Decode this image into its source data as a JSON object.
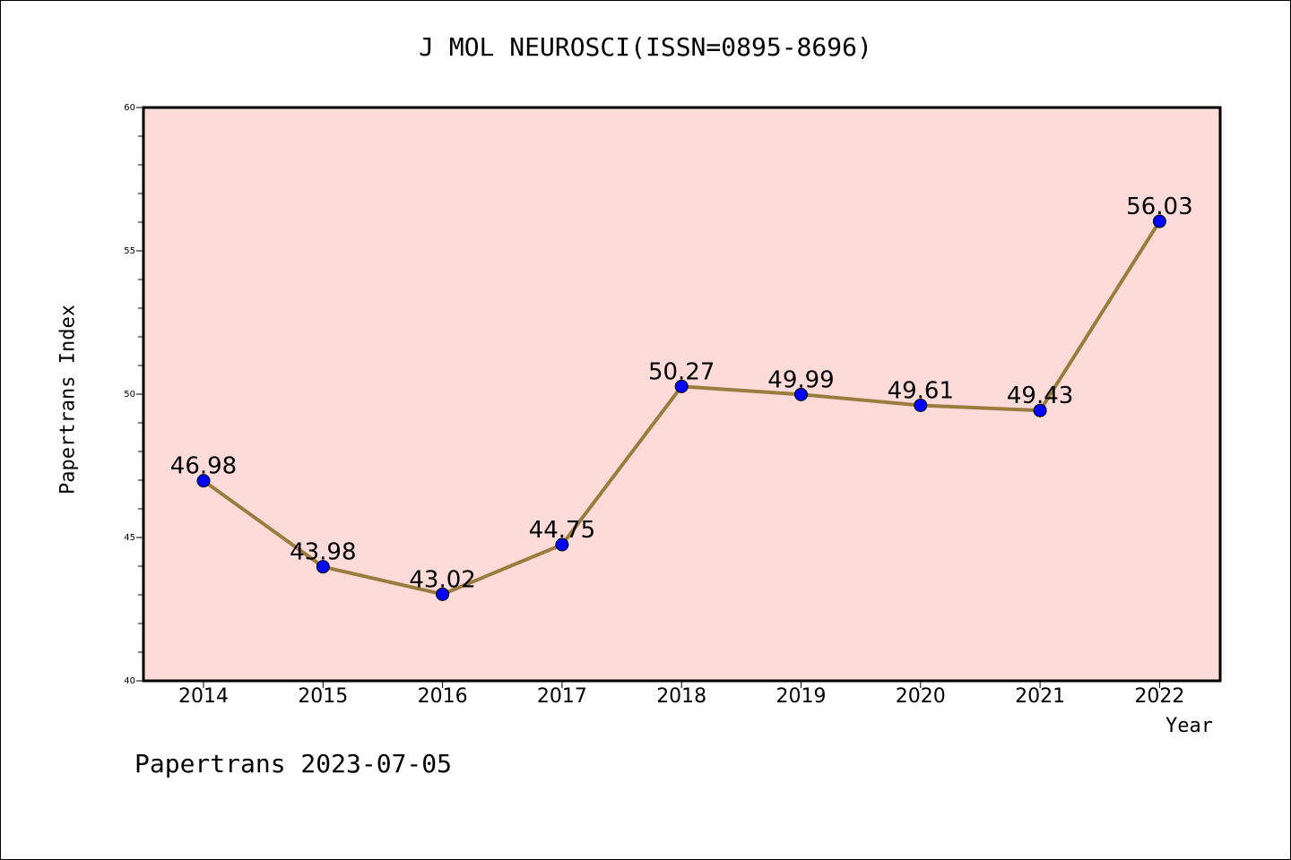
{
  "chart_data": {
    "type": "line",
    "title": "J MOL NEUROSCI(ISSN=0895-8696)",
    "xlabel": "Year",
    "ylabel": "Papertrans Index",
    "categories": [
      "2014",
      "2015",
      "2016",
      "2017",
      "2018",
      "2019",
      "2020",
      "2021",
      "2022"
    ],
    "series": [
      {
        "values": [
          46.98,
          43.98,
          43.02,
          44.75,
          50.27,
          49.99,
          49.61,
          49.43,
          56.03
        ],
        "labels": [
          "46.98",
          "43.98",
          "43.02",
          "44.75",
          "50.27",
          "49.99",
          "49.61",
          "49.43",
          "56.03"
        ]
      }
    ],
    "ylim": [
      40,
      60
    ],
    "yticks": [
      "40",
      "45",
      "50",
      "55",
      "60"
    ],
    "grid": false,
    "plot_background": "#fddbd8",
    "line_color": "#9a7d3e",
    "marker_color": "#0000ff"
  },
  "footer": "Papertrans 2023-07-05"
}
